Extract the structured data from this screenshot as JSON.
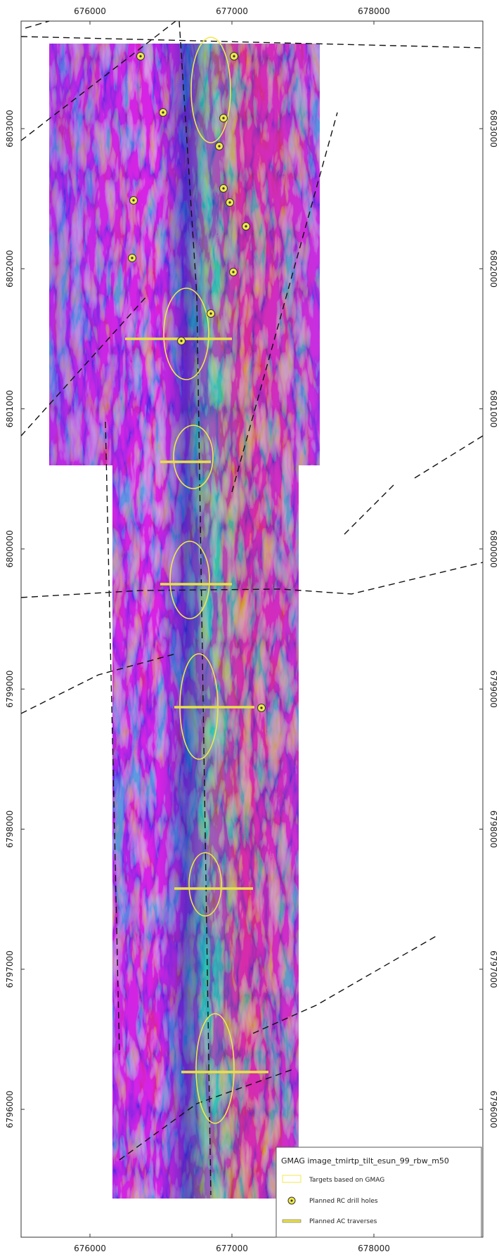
{
  "map": {
    "x_ticks": [
      "676000",
      "677000",
      "678000"
    ],
    "y_ticks": [
      "6803000",
      "6802000",
      "6801000",
      "6800000",
      "6799000",
      "6798000",
      "6797000",
      "6796000"
    ],
    "legend": {
      "title": "GMAG image_tmirtp_tilt_esun_99_rbw_m50",
      "items": [
        "Targets based on GMAG",
        "Planned RC drill holes",
        "Planned AC traverses"
      ]
    }
  }
}
